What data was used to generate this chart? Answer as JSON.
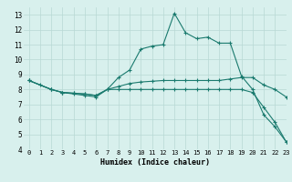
{
  "xlabel": "Humidex (Indice chaleur)",
  "background_color": "#d8f0ed",
  "grid_color": "#b8d8d4",
  "line_color": "#1a7a6e",
  "xlim": [
    -0.5,
    23
  ],
  "ylim": [
    4,
    13.5
  ],
  "xticks": [
    0,
    1,
    2,
    3,
    4,
    5,
    6,
    7,
    8,
    9,
    10,
    11,
    12,
    13,
    14,
    15,
    16,
    17,
    18,
    19,
    20,
    21,
    22,
    23
  ],
  "yticks": [
    4,
    5,
    6,
    7,
    8,
    9,
    10,
    11,
    12,
    13
  ],
  "series": [
    {
      "x": [
        0,
        1,
        2,
        3,
        4,
        5,
        6,
        7,
        8,
        9,
        10,
        11,
        12,
        13,
        14,
        15,
        16,
        17,
        18,
        19,
        20,
        21,
        22,
        23
      ],
      "y": [
        8.6,
        8.3,
        8.0,
        7.8,
        7.7,
        7.6,
        7.5,
        8.0,
        8.8,
        9.3,
        10.7,
        10.9,
        11.0,
        13.1,
        11.8,
        11.4,
        11.5,
        11.1,
        11.1,
        8.9,
        8.0,
        6.3,
        5.5,
        4.5
      ]
    },
    {
      "x": [
        0,
        2,
        3,
        4,
        5,
        6,
        7,
        8,
        9,
        10,
        11,
        12,
        13,
        14,
        15,
        16,
        17,
        18,
        19,
        20,
        21,
        22,
        23
      ],
      "y": [
        8.6,
        8.0,
        7.8,
        7.75,
        7.7,
        7.6,
        8.0,
        8.2,
        8.4,
        8.5,
        8.55,
        8.6,
        8.6,
        8.6,
        8.6,
        8.6,
        8.6,
        8.7,
        8.8,
        8.8,
        8.3,
        8.0,
        7.5
      ]
    },
    {
      "x": [
        0,
        2,
        3,
        4,
        5,
        6,
        7,
        8,
        9,
        10,
        11,
        12,
        13,
        14,
        15,
        16,
        17,
        18,
        19,
        20,
        21,
        22,
        23
      ],
      "y": [
        8.6,
        8.0,
        7.8,
        7.75,
        7.7,
        7.6,
        8.0,
        8.0,
        8.0,
        8.0,
        8.0,
        8.0,
        8.0,
        8.0,
        8.0,
        8.0,
        8.0,
        8.0,
        8.0,
        7.8,
        6.8,
        5.8,
        4.5
      ]
    }
  ]
}
